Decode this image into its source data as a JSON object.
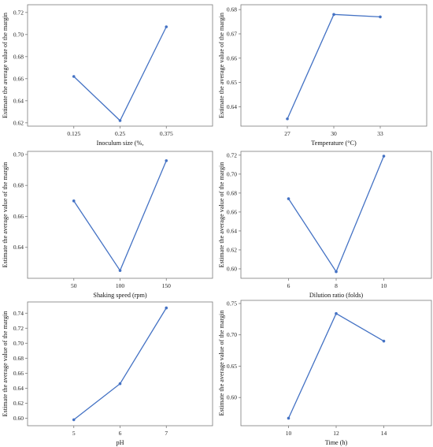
{
  "chart_data": [
    {
      "type": "line",
      "xlabel": "Inoculum  size  (%,",
      "ylabel": "Estimate the average value of the margin",
      "categories": [
        "0.125",
        "0.25",
        "0.375"
      ],
      "values": [
        0.662,
        0.622,
        0.707
      ],
      "ylim": [
        0.617,
        0.727
      ],
      "yticks": [
        "0.62",
        "0.64",
        "0.66",
        "0.68",
        "0.70",
        "0.72"
      ],
      "line_color": "#4472c4"
    },
    {
      "type": "line",
      "xlabel": "Temperature (°C)",
      "ylabel": "Estimate the average value of the margin",
      "categories": [
        "27",
        "30",
        "33"
      ],
      "values": [
        0.635,
        0.678,
        0.677
      ],
      "ylim": [
        0.632,
        0.682
      ],
      "yticks": [
        "0.64",
        "0.65",
        "0.66",
        "0.67",
        "0.68"
      ],
      "line_color": "#4472c4"
    },
    {
      "type": "line",
      "xlabel": "Shaking speed (rpm)",
      "ylabel": "Estimate the average value of the margin",
      "categories": [
        "50",
        "100",
        "150"
      ],
      "values": [
        0.67,
        0.625,
        0.696
      ],
      "ylim": [
        0.62,
        0.702
      ],
      "yticks": [
        "0.64",
        "0.66",
        "0.68",
        "0.70"
      ],
      "line_color": "#4472c4"
    },
    {
      "type": "line",
      "xlabel": "Dilution ratio (folds)",
      "ylabel": "Estimate the average value of the margin",
      "categories": [
        "6",
        "8",
        "10"
      ],
      "values": [
        0.674,
        0.597,
        0.719
      ],
      "ylim": [
        0.59,
        0.724
      ],
      "yticks": [
        "0.60",
        "0.62",
        "0.64",
        "0.66",
        "0.68",
        "0.70",
        "0.72"
      ],
      "line_color": "#4472c4"
    },
    {
      "type": "line",
      "xlabel": "pH",
      "ylabel": "Estimate the average value of the margin",
      "categories": [
        "5",
        "6",
        "7"
      ],
      "values": [
        0.598,
        0.646,
        0.747
      ],
      "ylim": [
        0.59,
        0.755
      ],
      "yticks": [
        "0.60",
        "0.62",
        "0.64",
        "0.66",
        "0.68",
        "0.70",
        "0.72",
        "0.74"
      ],
      "line_color": "#4472c4"
    },
    {
      "type": "line",
      "xlabel": "Time (h)",
      "ylabel": "Estimate the average value of the margin",
      "categories": [
        "10",
        "12",
        "14"
      ],
      "values": [
        0.567,
        0.734,
        0.69
      ],
      "ylim": [
        0.555,
        0.755
      ],
      "yticks": [
        "0.60",
        "0.65",
        "0.70",
        "0.75"
      ],
      "line_color": "#4472c4"
    }
  ]
}
